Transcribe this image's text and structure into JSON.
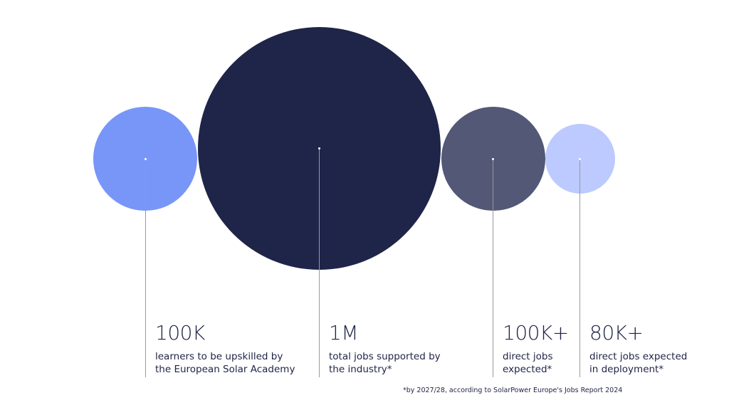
{
  "colors": {
    "circle_learners": "#7896f8",
    "circle_total": "#1f2449",
    "circle_direct": "#525875",
    "circle_deployment": "#bccaff",
    "text": "#1f2345",
    "leader": "#9a9a9a"
  },
  "stats": [
    {
      "value": "100K",
      "desc_line1": "learners to be upskilled by",
      "desc_line2": "the European Solar Academy"
    },
    {
      "value": "1M",
      "desc_line1": "total jobs supported by",
      "desc_line2": "the industry*"
    },
    {
      "value": "100K+",
      "desc_line1": "direct jobs",
      "desc_line2": "expected*"
    },
    {
      "value": "80K+",
      "desc_line1": "direct jobs expected",
      "desc_line2": "in deployment*"
    }
  ],
  "footnote": "*by 2027/28, according to SolarPower Europe's Jobs Report 2024"
}
